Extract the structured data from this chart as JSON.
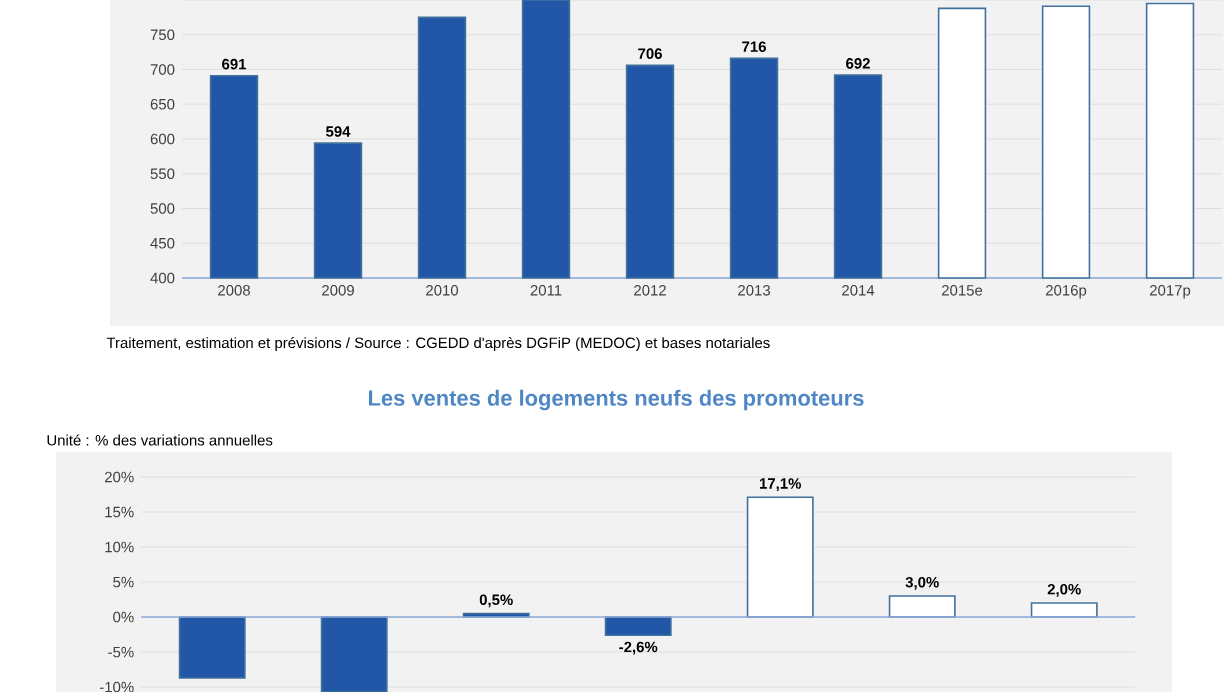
{
  "chart_data": [
    {
      "type": "bar",
      "categories": [
        "2008",
        "2009",
        "2010",
        "2011",
        "2012",
        "2013",
        "2014",
        "2015e",
        "2016p",
        "2017p"
      ],
      "values": [
        691,
        594,
        775,
        800,
        706,
        716,
        692,
        788,
        791,
        795
      ],
      "colors": [
        "#2157a6",
        "#2157a6",
        "#2157a6",
        "#2157a6",
        "#2157a6",
        "#2157a6",
        "#2157a6",
        "#ffffff",
        "#ffffff",
        "#ffffff"
      ],
      "value_labels": [
        "691",
        "594",
        null,
        null,
        "706",
        "716",
        "692",
        null,
        null,
        null
      ],
      "ylim": [
        400,
        800
      ],
      "yticks": [
        400,
        450,
        500,
        550,
        600,
        650,
        700,
        750,
        {
          "value": 800,
          "label": null
        }
      ],
      "grid": "y",
      "annotations": [
        "Traitement, estimation et prévisions / Source : CGEDD d'après DGFiP (MEDOC) et bases notariales"
      ]
    },
    {
      "type": "bar",
      "title": "Les ventes de logements neufs des promoteurs",
      "subtitle": "Unité : % des variations annuelles",
      "categories": [
        null,
        null,
        null,
        null,
        null,
        null,
        null
      ],
      "values": [
        -8.7,
        -10.7,
        0.5,
        -2.6,
        17.1,
        3.0,
        2.0
      ],
      "colors": [
        "#2157a6",
        "#2157a6",
        "#2157a6",
        "#2157a6",
        "#ffffff",
        "#ffffff",
        "#ffffff"
      ],
      "value_labels": [
        null,
        null,
        "0,5%",
        "-2,6%",
        "17,1%",
        "3,0%",
        "2,0%"
      ],
      "ylim": [
        -10.7,
        23
      ],
      "yticks": [
        {
          "value": -10,
          "label": "-10%"
        },
        {
          "value": -5,
          "label": "-5%"
        },
        {
          "value": 0,
          "label": "0%"
        },
        {
          "value": 5,
          "label": "5%"
        },
        {
          "value": 10,
          "label": "10%"
        },
        {
          "value": 15,
          "label": "15%"
        },
        {
          "value": 20,
          "label": "20%"
        }
      ],
      "grid": "y",
      "ref_lines": [
        {
          "axis": "y",
          "value": 0,
          "color": "#8eaadb"
        }
      ]
    }
  ]
}
